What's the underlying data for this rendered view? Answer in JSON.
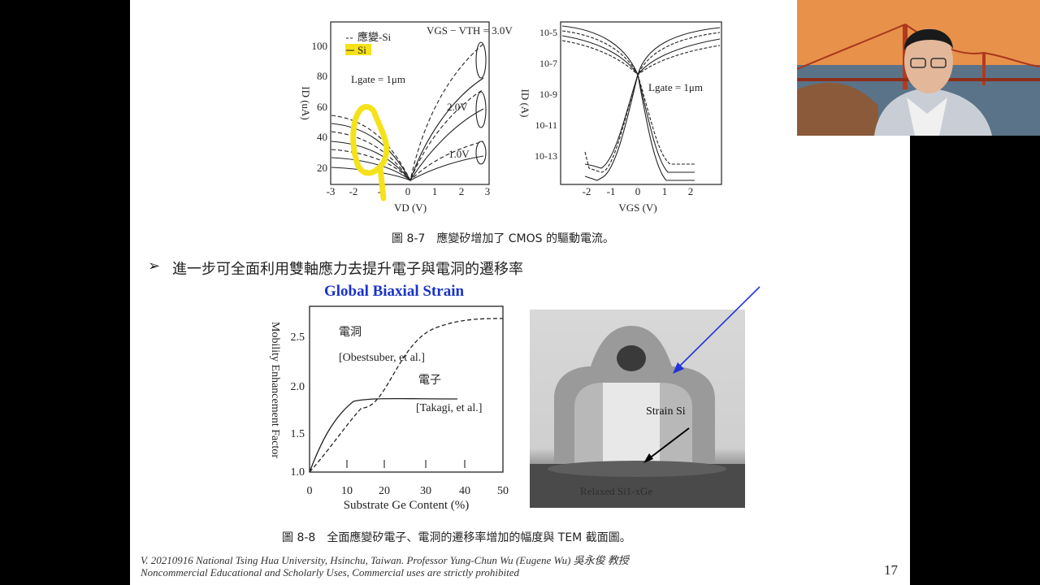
{
  "slide": {
    "page_number": "17",
    "figure_top_caption": "圖 8-7　應變矽增加了 CMOS 的驅動電流。",
    "bullet_marker": "➢",
    "bullet_text": "進一步可全面利用雙軸應力去提升電子與電洞的遷移率",
    "figure_bottom_caption": "圖 8-8　全面應變矽電子、電洞的遷移率增加的幅度與 TEM 截面圖。",
    "footer_line1": "V. 20210916 National Tsing Hua University, Hsinchu, Taiwan. Professor Yung-Chun Wu (Eugene Wu) 吳永俊 教授",
    "footer_line2": "Noncommercial Educational and Scholarly Uses, Commercial uses are strictly prohibited"
  },
  "chart_data": [
    {
      "type": "line",
      "legend": [
        "應變-Si",
        "Si"
      ],
      "legend_highlight_color": "#f5e21b",
      "xlabel": "VD (V)",
      "ylabel": "ID (uA)",
      "xticks": [
        "-3",
        "-2",
        "-1",
        "0",
        "1",
        "2",
        "3"
      ],
      "yticks": [
        "20",
        "40",
        "60",
        "80",
        "100"
      ],
      "annotations": [
        "VGS − VTH = 3.0V",
        "2.0V",
        "1.0V",
        "Lgate = 1μm"
      ],
      "series": [
        {
          "name": "應變-Si",
          "style": "dashed",
          "x": [
            -3,
            -2,
            -1,
            0,
            1,
            2,
            3
          ],
          "y": [
            50,
            46,
            36,
            0,
            70,
            92,
            100
          ]
        },
        {
          "name": "Si",
          "style": "solid",
          "x": [
            -3,
            -2,
            -1,
            0,
            1,
            2,
            3
          ],
          "y": [
            41,
            38,
            31,
            0,
            54,
            70,
            76
          ]
        }
      ]
    },
    {
      "type": "line",
      "xlabel": "VGS (V)",
      "ylabel": "ID (A)",
      "xticks": [
        "-2",
        "-1",
        "0",
        "1",
        "2"
      ],
      "yticks": [
        "10-5",
        "10-7",
        "10-9",
        "10-11",
        "10-13"
      ],
      "annotations": [
        "Lgate = 1μm"
      ]
    },
    {
      "type": "line",
      "title": "Global Biaxial Strain",
      "title_color": "#1a33c8",
      "xlabel": "Substrate Ge Content (%)",
      "ylabel": "Mobility Enhancement Factor",
      "xlim": [
        0,
        50
      ],
      "ylim": [
        1.0,
        2.7
      ],
      "xticks": [
        "0",
        "10",
        "20",
        "30",
        "40",
        "50"
      ],
      "yticks": [
        "1.0",
        "1.5",
        "2.0",
        "2.5"
      ],
      "annotations": [
        "電洞",
        "[Obestsuber, et al.]",
        "電子",
        "[Takagi, et al.]"
      ],
      "series": [
        {
          "name": "電洞",
          "style": "dashed",
          "x": [
            0,
            5,
            10,
            15,
            20,
            25,
            30,
            35,
            40,
            50
          ],
          "y": [
            1.0,
            1.12,
            1.27,
            1.5,
            1.85,
            2.2,
            2.5,
            2.62,
            2.67,
            2.69
          ]
        },
        {
          "name": "電子",
          "style": "solid",
          "x": [
            0,
            3,
            6,
            10,
            15,
            20,
            25,
            30,
            38
          ],
          "y": [
            1.0,
            1.35,
            1.6,
            1.77,
            1.83,
            1.86,
            1.87,
            1.87,
            1.87
          ]
        }
      ]
    }
  ],
  "tem_image": {
    "label_strain": "Strain Si",
    "label_relaxed": "Relaxed Si1-xGe"
  },
  "annotation_arrow_color": "#2233d9",
  "presenter_video": {
    "background": "golden-gate-bridge-sunset"
  }
}
